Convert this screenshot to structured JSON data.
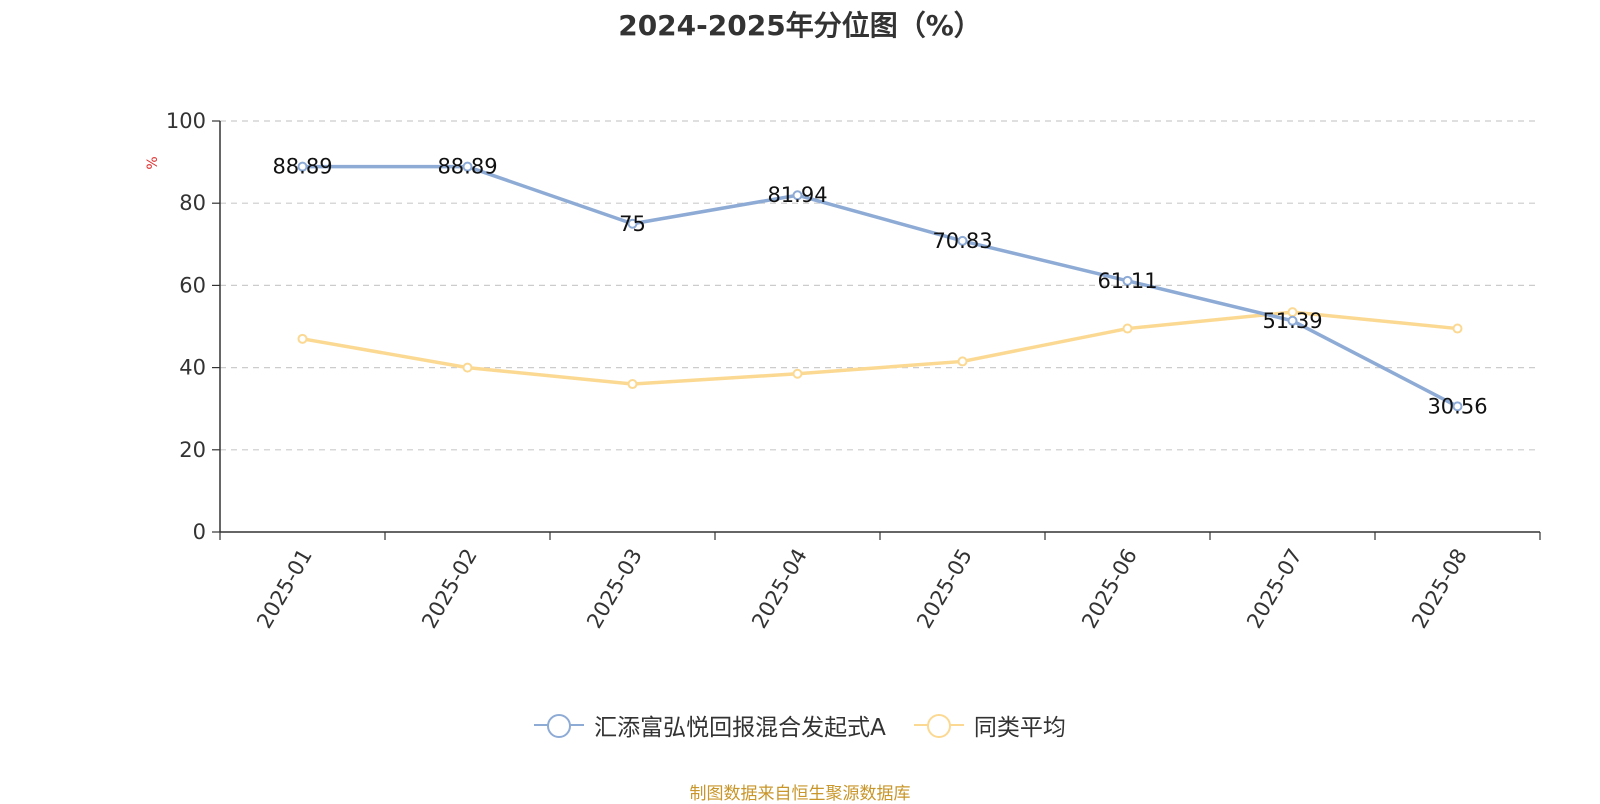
{
  "chart_data": {
    "type": "line",
    "title": "2024-2025年分位图（%）",
    "ylabel": "%",
    "xlabel": "",
    "categories": [
      "2025-01",
      "2025-02",
      "2025-03",
      "2025-04",
      "2025-05",
      "2025-06",
      "2025-07",
      "2025-08"
    ],
    "ylim": [
      0,
      100
    ],
    "yticks": [
      0,
      20,
      40,
      60,
      80,
      100
    ],
    "grid": true,
    "legend_position": "bottom",
    "series": [
      {
        "name": "汇添富弘悦回报混合发起式A",
        "color": "#8eabd6",
        "values": [
          88.89,
          88.89,
          75,
          81.94,
          70.83,
          61.11,
          51.39,
          30.56
        ],
        "labels": [
          "88.89",
          "88.89",
          "75",
          "81.94",
          "70.83",
          "61.11",
          "51.39",
          "30.56"
        ]
      },
      {
        "name": "同类平均",
        "color": "#fbd993",
        "values": [
          47,
          40,
          36,
          38.5,
          41.5,
          49.5,
          53.5,
          49.5
        ]
      }
    ]
  },
  "source_text": "制图数据来自恒生聚源数据库"
}
